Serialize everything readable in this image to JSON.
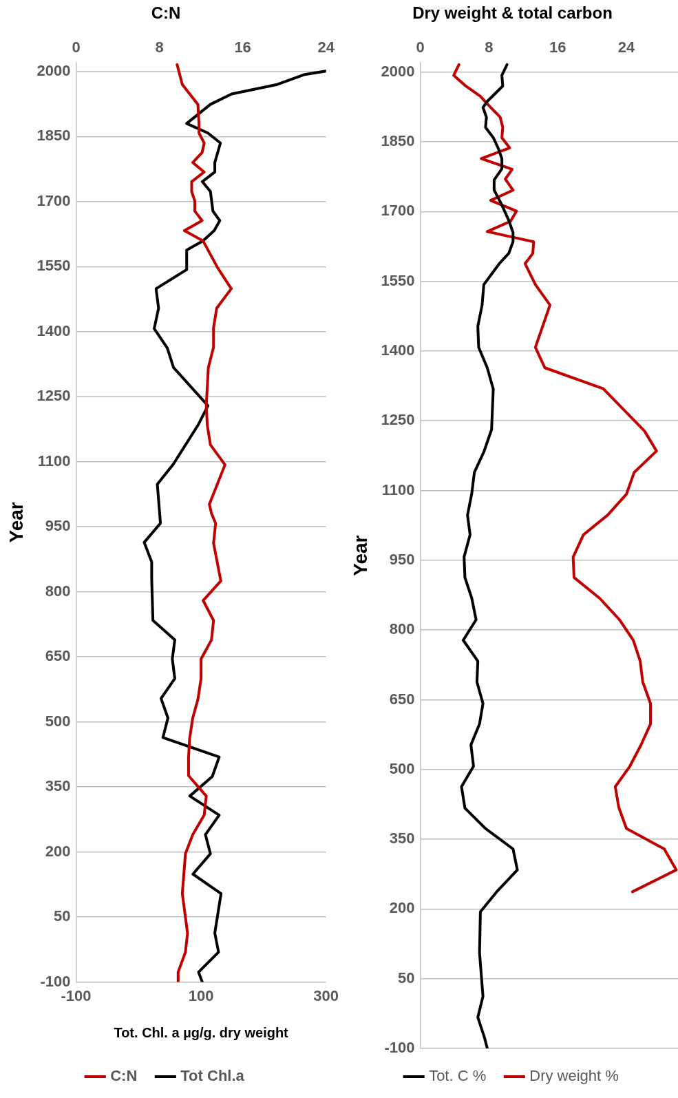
{
  "chart_data": [
    {
      "type": "line",
      "title": "C:N",
      "xlabel": "Tot. Chl. a µg/g. dry weight",
      "ylabel": "Year",
      "xlim": [
        -100,
        300
      ],
      "xticks": [
        -100,
        100,
        300
      ],
      "x2lim": [
        0,
        24
      ],
      "x2ticks": [
        0,
        8,
        16,
        24
      ],
      "ylim": [
        -100,
        2020
      ],
      "yticks": [
        -100,
        50,
        200,
        350,
        500,
        650,
        800,
        950,
        1100,
        1250,
        1400,
        1550,
        1700,
        1850,
        2000
      ],
      "grid": "y",
      "legend": "bottom",
      "series": [
        {
          "name": "C:N",
          "color": "#c00000",
          "axis": "x2",
          "x": [
            9.7,
            10.2,
            11.7,
            11.8,
            11.8,
            12.3,
            12.1,
            11.2,
            12.3,
            11.1,
            11.1,
            11.4,
            11.4,
            12.1,
            10.4,
            12.2,
            13.6,
            14.9,
            13.5,
            13.2,
            13.2,
            12.7,
            12.5,
            12.6,
            12.9,
            14.3,
            12.8,
            13.0,
            13.4,
            13.2,
            13.9,
            12.2,
            13.2,
            13.0,
            12.0,
            12.0,
            11.7,
            11.2,
            10.9,
            10.8,
            10.8,
            12.5,
            12.3,
            11.2,
            10.5,
            10.2,
            10.7,
            10.5,
            9.8,
            9.8
          ],
          "values": [
            2016,
            1970,
            1924,
            1880,
            1858,
            1835,
            1813,
            1790,
            1768,
            1746,
            1723,
            1701,
            1678,
            1656,
            1633,
            1609,
            1547,
            1499,
            1454,
            1409,
            1364,
            1317,
            1229,
            1184,
            1139,
            1093,
            1002,
            981,
            958,
            912,
            825,
            780,
            734,
            689,
            645,
            600,
            552,
            509,
            461,
            418,
            376,
            329,
            285,
            240,
            196,
            104,
            13,
            -31,
            -77,
            -100
          ]
        },
        {
          "name": "Tot Chl.a",
          "color": "#000000",
          "x": [
            300,
            266,
            222,
            149,
            115,
            77,
            111,
            131,
            122,
            122,
            102,
            115,
            119,
            130,
            121,
            103,
            77,
            77,
            28,
            32,
            25,
            46,
            56,
            111,
            95,
            55,
            30,
            35,
            9,
            21,
            21,
            23,
            58,
            54,
            58,
            36,
            47,
            39,
            129,
            118,
            82,
            129,
            107,
            115,
            87,
            132,
            122,
            128,
            96,
            102
          ],
          "values": [
            2001,
            1993,
            1970,
            1948,
            1924,
            1880,
            1858,
            1835,
            1790,
            1768,
            1746,
            1723,
            1678,
            1656,
            1633,
            1609,
            1588,
            1543,
            1499,
            1454,
            1407,
            1362,
            1317,
            1229,
            1184,
            1093,
            1048,
            958,
            914,
            869,
            829,
            734,
            689,
            645,
            600,
            554,
            509,
            464,
            419,
            374,
            329,
            285,
            240,
            196,
            149,
            104,
            13,
            -31,
            -77,
            -100
          ]
        }
      ]
    },
    {
      "type": "line",
      "title": "Dry weight & total carbon",
      "ylabel": "Year",
      "xlim": [
        0,
        30
      ],
      "xticks": [
        0,
        8,
        16,
        24
      ],
      "ylim": [
        -100,
        2020
      ],
      "yticks": [
        -100,
        50,
        200,
        350,
        500,
        650,
        800,
        950,
        1100,
        1250,
        1400,
        1550,
        1700,
        1850,
        2000
      ],
      "grid": "y",
      "legend": "bottom",
      "series": [
        {
          "name": "Tot. C %",
          "color": "#000000",
          "x": [
            10.1,
            9.5,
            9.6,
            7.8,
            7.3,
            7.7,
            7.6,
            8.5,
            9.1,
            9.5,
            9.5,
            8.6,
            8.6,
            9.4,
            10.3,
            10.8,
            10.8,
            10.3,
            9.2,
            7.4,
            7.2,
            6.7,
            6.8,
            7.8,
            8.5,
            8.3,
            7.4,
            6.3,
            6.0,
            5.5,
            5.8,
            5.1,
            5.2,
            6.0,
            6.5,
            5.0,
            6.7,
            6.6,
            7.3,
            6.9,
            5.9,
            6.2,
            4.8,
            5.2,
            7.6,
            10.8,
            11.3,
            8.9,
            7.0,
            6.9,
            7.3,
            6.7,
            7.5,
            7.8
          ],
          "values": [
            2016,
            1993,
            1970,
            1937,
            1924,
            1903,
            1881,
            1859,
            1835,
            1814,
            1792,
            1768,
            1746,
            1718,
            1681,
            1655,
            1635,
            1610,
            1588,
            1543,
            1499,
            1453,
            1408,
            1364,
            1318,
            1231,
            1183,
            1139,
            1094,
            1047,
            1005,
            957,
            913,
            868,
            822,
            778,
            733,
            688,
            642,
            598,
            553,
            507,
            463,
            417,
            373,
            329,
            284,
            237,
            194,
            106,
            12,
            -33,
            -78,
            -100
          ]
        },
        {
          "name": "Dry weight %",
          "color": "#c00000",
          "x": [
            4.5,
            3.9,
            5.3,
            7.0,
            8.2,
            9.3,
            9.6,
            9.5,
            10.4,
            7.1,
            10.7,
            9.9,
            10.8,
            8.2,
            11.2,
            10.5,
            7.8,
            13.2,
            13.1,
            12.2,
            13.4,
            15.1,
            13.4,
            14.5,
            21.3,
            26.1,
            27.5,
            24.9,
            24.0,
            21.8,
            19.0,
            17.8,
            17.9,
            20.9,
            23.2,
            24.8,
            25.6,
            25.9,
            26.8,
            26.8,
            25.7,
            24.4,
            22.7,
            23.1,
            24.0,
            28.4,
            29.8,
            24.7
          ],
          "values": [
            2016,
            1993,
            1970,
            1948,
            1924,
            1903,
            1881,
            1859,
            1837,
            1814,
            1791,
            1770,
            1746,
            1724,
            1701,
            1679,
            1657,
            1635,
            1610,
            1588,
            1543,
            1499,
            1408,
            1364,
            1319,
            1228,
            1185,
            1139,
            1092,
            1047,
            1005,
            957,
            913,
            868,
            822,
            778,
            733,
            688,
            642,
            598,
            553,
            507,
            463,
            419,
            373,
            329,
            284,
            237
          ]
        }
      ]
    }
  ]
}
